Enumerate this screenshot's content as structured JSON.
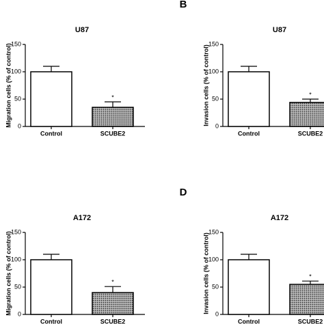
{
  "chart_data": [
    {
      "type": "bar",
      "title": "U87",
      "ylabel": "Migration cells (% of control)",
      "categories": [
        "Control",
        "SCUBE2"
      ],
      "values": [
        100,
        35
      ],
      "errors": [
        10,
        10
      ],
      "colors": [
        "#ffffff",
        "#777777"
      ],
      "ylim": [
        0,
        150
      ],
      "yticks": [
        0,
        50,
        100,
        150
      ],
      "annotations": [
        {
          "category": "SCUBE2",
          "text": "*"
        }
      ]
    },
    {
      "type": "bar",
      "panel": "B",
      "title": "U87",
      "ylabel": "Invasion cells (% of control)",
      "categories": [
        "Control",
        "SCUBE2"
      ],
      "values": [
        100,
        44
      ],
      "errors": [
        10,
        6
      ],
      "colors": [
        "#ffffff",
        "#777777"
      ],
      "ylim": [
        0,
        150
      ],
      "yticks": [
        0,
        50,
        100,
        150
      ],
      "annotations": [
        {
          "category": "SCUBE2",
          "text": "*"
        }
      ]
    },
    {
      "type": "bar",
      "title": "A172",
      "ylabel": "Migration cells (% of control)",
      "categories": [
        "Control",
        "SCUBE2"
      ],
      "values": [
        100,
        40
      ],
      "errors": [
        10,
        11
      ],
      "colors": [
        "#ffffff",
        "#777777"
      ],
      "ylim": [
        0,
        150
      ],
      "yticks": [
        0,
        50,
        100,
        150
      ],
      "annotations": [
        {
          "category": "SCUBE2",
          "text": "*"
        }
      ]
    },
    {
      "type": "bar",
      "panel": "D",
      "title": "A172",
      "ylabel": "Invasion cells (% of control)",
      "categories": [
        "Control",
        "SCUBE2"
      ],
      "values": [
        100,
        55
      ],
      "errors": [
        10,
        6
      ],
      "colors": [
        "#ffffff",
        "#777777"
      ],
      "ylim": [
        0,
        150
      ],
      "yticks": [
        0,
        50,
        100,
        150
      ],
      "annotations": [
        {
          "category": "SCUBE2",
          "text": "*"
        }
      ]
    }
  ]
}
